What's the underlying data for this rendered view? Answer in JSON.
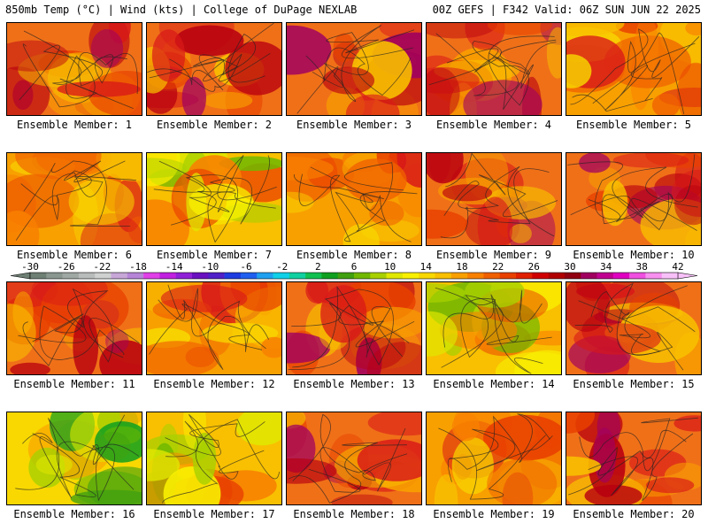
{
  "header": {
    "left": "850mb Temp (°C) | Wind (kts) | College of DuPage NEXLAB",
    "right": "00Z GEFS | F342 Valid: 06Z SUN JUN 22 2025"
  },
  "panels": [
    {
      "label": "Ensemble Member: 1",
      "scheme": "hot"
    },
    {
      "label": "Ensemble Member: 2",
      "scheme": "hot"
    },
    {
      "label": "Ensemble Member: 3",
      "scheme": "hot"
    },
    {
      "label": "Ensemble Member: 4",
      "scheme": "hot"
    },
    {
      "label": "Ensemble Member: 5",
      "scheme": "warm"
    },
    {
      "label": "Ensemble Member: 6",
      "scheme": "warm"
    },
    {
      "label": "Ensemble Member: 7",
      "scheme": "cool"
    },
    {
      "label": "Ensemble Member: 8",
      "scheme": "warm"
    },
    {
      "label": "Ensemble Member: 9",
      "scheme": "hot"
    },
    {
      "label": "Ensemble Member: 10",
      "scheme": "hot"
    },
    {
      "label": "Ensemble Member: 11",
      "scheme": "hot"
    },
    {
      "label": "Ensemble Member: 12",
      "scheme": "warm"
    },
    {
      "label": "Ensemble Member: 13",
      "scheme": "hot"
    },
    {
      "label": "Ensemble Member: 14",
      "scheme": "cool"
    },
    {
      "label": "Ensemble Member: 15",
      "scheme": "hot"
    },
    {
      "label": "Ensemble Member: 16",
      "scheme": "cold"
    },
    {
      "label": "Ensemble Member: 17",
      "scheme": "cool"
    },
    {
      "label": "Ensemble Member: 18",
      "scheme": "hot"
    },
    {
      "label": "Ensemble Member: 19",
      "scheme": "warm"
    },
    {
      "label": "Ensemble Member: 20",
      "scheme": "hot"
    }
  ],
  "colorbar": {
    "ticks": [
      "-30",
      "-26",
      "-22",
      "-18",
      "-14",
      "-10",
      "-6",
      "-2",
      "2",
      "6",
      "10",
      "14",
      "18",
      "22",
      "26",
      "30",
      "34",
      "38",
      "42"
    ],
    "colors": [
      "#6e7f74",
      "#8a9690",
      "#a0a8a4",
      "#b8bcba",
      "#cfd0d0",
      "#c7a6d8",
      "#b685d8",
      "#e040e8",
      "#c020e0",
      "#9020d8",
      "#6a10c0",
      "#5020c8",
      "#1e3ce0",
      "#2060f0",
      "#20a0f0",
      "#10d0e8",
      "#10d0a0",
      "#10c050",
      "#10a020",
      "#40a010",
      "#70b800",
      "#a8d000",
      "#e0e800",
      "#f8f000",
      "#f8d800",
      "#f8c000",
      "#f8a000",
      "#f88000",
      "#f06000",
      "#e84000",
      "#e02000",
      "#d00000",
      "#b00000",
      "#900010",
      "#a00060",
      "#c00090",
      "#e000c0",
      "#f050e0",
      "#f890f0",
      "#f8c0f8"
    ]
  }
}
